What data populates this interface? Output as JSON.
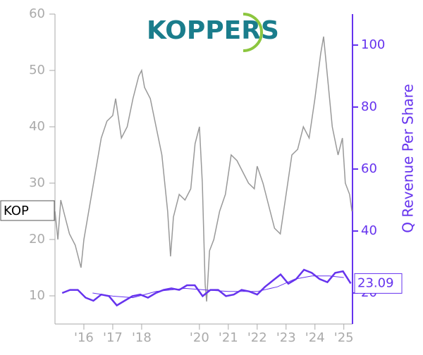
{
  "chart_data": {
    "type": "line",
    "logo_text": "KOPPERS",
    "y2_label": "Q Revenue Per Share",
    "xlim": [
      2015,
      2025.3
    ],
    "xticks": [
      {
        "value": 2016,
        "label": "'16"
      },
      {
        "value": 2017,
        "label": "'17"
      },
      {
        "value": 2018,
        "label": "'18"
      },
      {
        "value": 2020,
        "label": "'20"
      },
      {
        "value": 2021,
        "label": "'21"
      },
      {
        "value": 2022,
        "label": "'22"
      },
      {
        "value": 2023,
        "label": "'23"
      },
      {
        "value": 2024,
        "label": "'24"
      },
      {
        "value": 2025,
        "label": "'25"
      }
    ],
    "ylim": [
      5,
      60
    ],
    "yticks": [
      10,
      20,
      30,
      40,
      50,
      60
    ],
    "y2lim": [
      10,
      110
    ],
    "y2ticks": [
      20,
      40,
      60,
      80,
      100
    ],
    "series": [
      {
        "name": "KOP",
        "color": "#999999",
        "x": [
          2015.0,
          2015.1,
          2015.2,
          2015.35,
          2015.5,
          2015.7,
          2015.9,
          2016.0,
          2016.2,
          2016.4,
          2016.6,
          2016.8,
          2017.0,
          2017.1,
          2017.3,
          2017.5,
          2017.7,
          2017.9,
          2018.0,
          2018.1,
          2018.3,
          2018.5,
          2018.7,
          2018.9,
          2019.0,
          2019.1,
          2019.3,
          2019.5,
          2019.7,
          2019.85,
          2020.0,
          2020.1,
          2020.2,
          2020.25,
          2020.35,
          2020.5,
          2020.7,
          2020.9,
          2021.1,
          2021.3,
          2021.5,
          2021.7,
          2021.9,
          2022.0,
          2022.2,
          2022.4,
          2022.6,
          2022.8,
          2023.0,
          2023.2,
          2023.4,
          2023.6,
          2023.8,
          2024.0,
          2024.2,
          2024.3,
          2024.45,
          2024.6,
          2024.8,
          2024.95,
          2025.05,
          2025.2,
          2025.28
        ],
        "values": [
          25,
          20,
          27,
          24,
          21,
          19,
          15,
          20,
          26,
          32,
          38,
          41,
          42,
          45,
          38,
          40,
          45,
          49,
          50,
          47,
          45,
          40,
          35,
          25,
          17,
          24,
          28,
          27,
          29,
          37,
          40,
          30,
          12,
          9,
          18,
          20,
          25,
          28,
          35,
          34,
          32,
          30,
          29,
          33,
          30,
          26,
          22,
          21,
          28,
          35,
          36,
          40,
          38,
          45,
          53,
          56,
          48,
          40,
          35,
          38,
          30,
          28,
          25
        ]
      },
      {
        "color": "#6633ee",
        "axis": "y2",
        "x": [
          2015.25,
          2015.52,
          2015.79,
          2016.06,
          2016.33,
          2016.6,
          2016.87,
          2017.14,
          2017.41,
          2017.68,
          2017.95,
          2018.22,
          2018.49,
          2018.76,
          2019.03,
          2019.3,
          2019.57,
          2019.84,
          2020.11,
          2020.38,
          2020.65,
          2020.92,
          2021.19,
          2021.46,
          2021.73,
          2022.0,
          2022.27,
          2022.54,
          2022.81,
          2023.08,
          2023.35,
          2023.62,
          2023.89,
          2024.16,
          2024.43,
          2024.7,
          2024.97,
          2025.24
        ],
        "values": [
          20,
          21,
          21,
          18.5,
          17.5,
          19.5,
          19,
          16,
          17.5,
          19,
          19.5,
          18.5,
          20,
          21,
          21.5,
          21,
          22.5,
          22.5,
          19,
          21,
          21,
          19,
          19.5,
          21,
          20.5,
          19.5,
          22,
          24,
          26,
          23,
          24.5,
          27.5,
          26.5,
          24.5,
          23.5,
          26.5,
          27,
          23.09
        ]
      },
      {
        "color": "#6633ee",
        "axis": "y2",
        "x": [
          2016.3,
          2017.0,
          2017.7,
          2018.5,
          2019.5,
          2020.2,
          2021.0,
          2022.0,
          2022.7,
          2023.3,
          2023.9,
          2024.5,
          2025.0
        ],
        "values": [
          20,
          19,
          18.5,
          20.5,
          21.5,
          21,
          20.5,
          20.5,
          22,
          24.5,
          25.5,
          25.5,
          25
        ]
      }
    ]
  }
}
